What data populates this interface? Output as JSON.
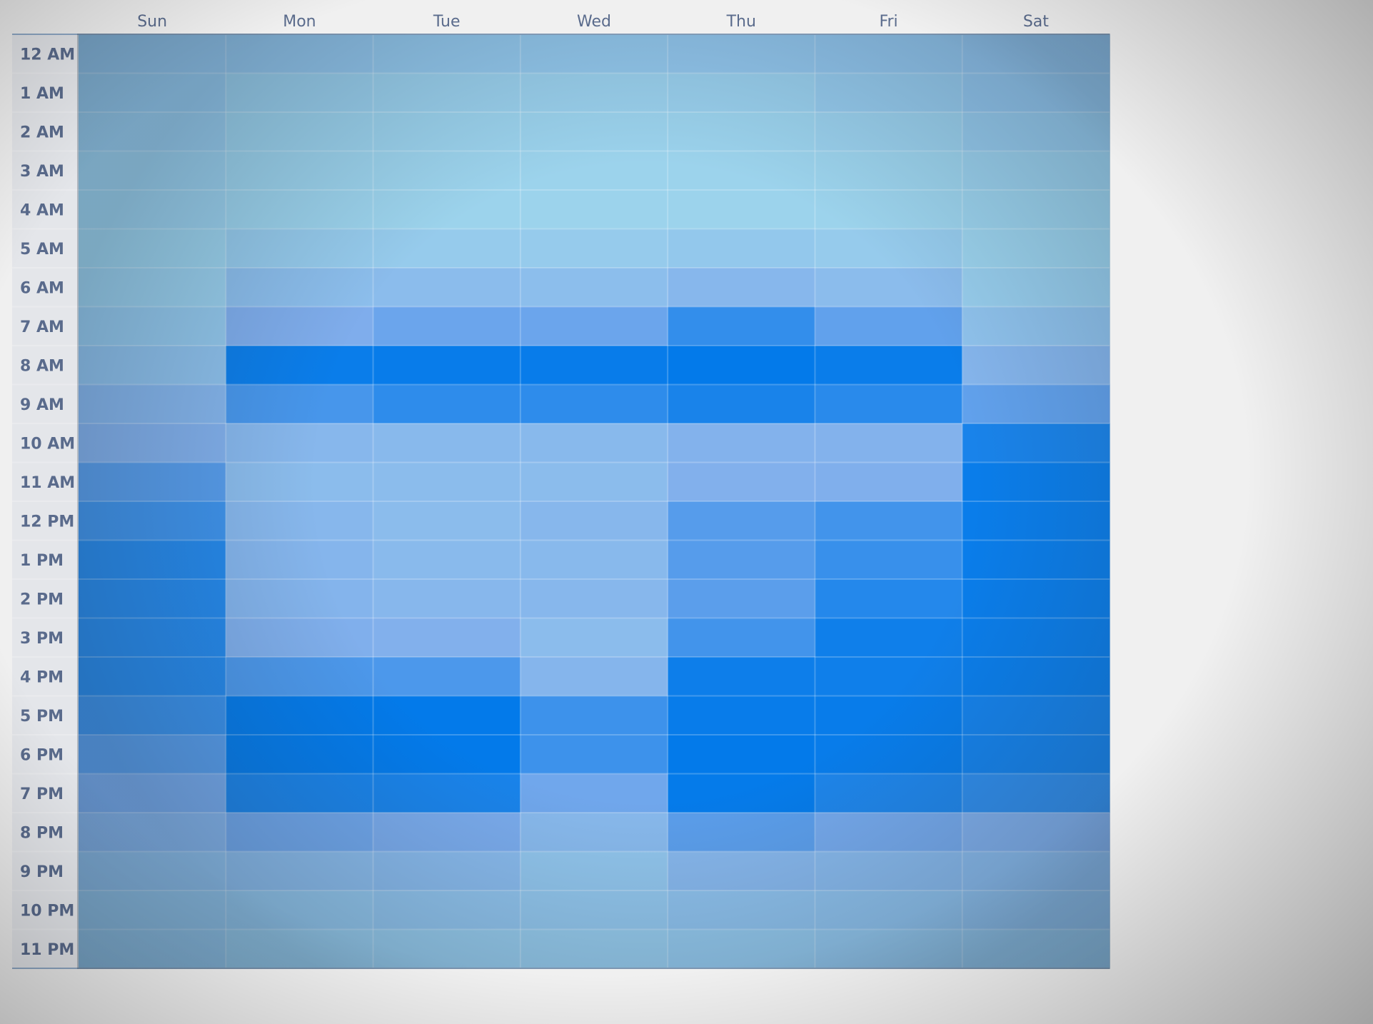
{
  "chart_data": {
    "type": "heatmap",
    "title": "",
    "xlabel": "",
    "ylabel": "",
    "columns": [
      "Sun",
      "Mon",
      "Tue",
      "Wed",
      "Thu",
      "Fri",
      "Sat"
    ],
    "rows": [
      "12 AM",
      "1 AM",
      "2 AM",
      "3 AM",
      "4 AM",
      "5 AM",
      "6 AM",
      "7 AM",
      "8 AM",
      "9 AM",
      "10 AM",
      "11 AM",
      "12 PM",
      "1 PM",
      "2 PM",
      "3 PM",
      "4 PM",
      "5 PM",
      "6 PM",
      "7 PM",
      "8 PM",
      "9 PM",
      "10 PM",
      "11 PM"
    ],
    "values": [
      [
        0.22,
        0.2,
        0.18,
        0.18,
        0.2,
        0.22,
        0.24
      ],
      [
        0.18,
        0.1,
        0.08,
        0.08,
        0.1,
        0.15,
        0.22
      ],
      [
        0.14,
        0.06,
        0.06,
        0.06,
        0.06,
        0.08,
        0.15
      ],
      [
        0.1,
        0.05,
        0.05,
        0.05,
        0.05,
        0.05,
        0.08
      ],
      [
        0.08,
        0.05,
        0.05,
        0.05,
        0.05,
        0.05,
        0.06
      ],
      [
        0.06,
        0.14,
        0.14,
        0.14,
        0.18,
        0.14,
        0.06
      ],
      [
        0.1,
        0.3,
        0.32,
        0.3,
        0.38,
        0.32,
        0.12
      ],
      [
        0.18,
        0.5,
        0.58,
        0.58,
        0.8,
        0.62,
        0.25
      ],
      [
        0.26,
        0.96,
        0.97,
        0.97,
        0.99,
        0.96,
        0.4
      ],
      [
        0.4,
        0.72,
        0.82,
        0.82,
        0.9,
        0.84,
        0.62
      ],
      [
        0.46,
        0.38,
        0.36,
        0.36,
        0.44,
        0.44,
        0.9
      ],
      [
        0.66,
        0.32,
        0.32,
        0.32,
        0.46,
        0.48,
        0.96
      ],
      [
        0.76,
        0.38,
        0.32,
        0.38,
        0.66,
        0.74,
        0.96
      ],
      [
        0.86,
        0.4,
        0.34,
        0.36,
        0.66,
        0.78,
        0.96
      ],
      [
        0.86,
        0.42,
        0.38,
        0.38,
        0.64,
        0.86,
        0.96
      ],
      [
        0.86,
        0.48,
        0.46,
        0.32,
        0.74,
        0.94,
        0.96
      ],
      [
        0.86,
        0.7,
        0.7,
        0.4,
        0.95,
        0.94,
        0.96
      ],
      [
        0.78,
        0.99,
        0.99,
        0.76,
        0.97,
        0.97,
        0.92
      ],
      [
        0.66,
        0.99,
        0.99,
        0.76,
        0.99,
        0.97,
        0.92
      ],
      [
        0.54,
        0.9,
        0.9,
        0.56,
        0.98,
        0.88,
        0.82
      ],
      [
        0.42,
        0.56,
        0.52,
        0.36,
        0.64,
        0.54,
        0.48
      ],
      [
        0.28,
        0.32,
        0.34,
        0.22,
        0.38,
        0.36,
        0.34
      ],
      [
        0.22,
        0.2,
        0.24,
        0.2,
        0.26,
        0.26,
        0.28
      ],
      [
        0.2,
        0.14,
        0.14,
        0.14,
        0.18,
        0.2,
        0.2
      ]
    ],
    "color_scale": {
      "low": "#9fd7ec",
      "mid": "#7fadec",
      "high": "#0079ea"
    },
    "label_color": "#5a6b8c",
    "grid": true,
    "legend": "none"
  }
}
